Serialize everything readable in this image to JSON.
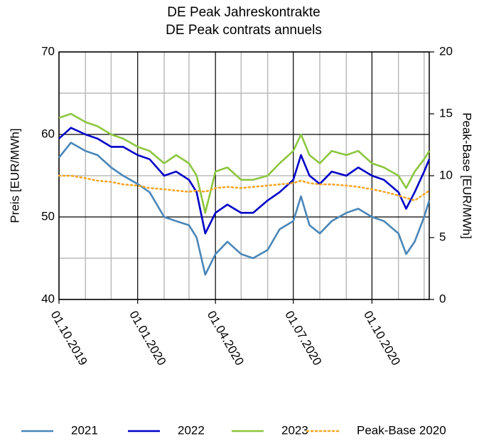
{
  "chart_data": {
    "type": "line",
    "title": "DE Peak Jahreskontrakte",
    "subtitle": "DE Peak contrats annuels",
    "y_label": "Preis [EUR/MWh]",
    "y2_label": "Peak-Base [EUR/MWh]",
    "x": [
      "2019-10-01",
      "2019-10-15",
      "2019-11-01",
      "2019-11-15",
      "2019-12-01",
      "2019-12-15",
      "2020-01-01",
      "2020-01-15",
      "2020-02-01",
      "2020-02-15",
      "2020-03-01",
      "2020-03-10",
      "2020-03-20",
      "2020-04-01",
      "2020-04-15",
      "2020-05-01",
      "2020-05-15",
      "2020-06-01",
      "2020-06-15",
      "2020-07-01",
      "2020-07-10",
      "2020-07-20",
      "2020-08-01",
      "2020-08-15",
      "2020-09-01",
      "2020-09-15",
      "2020-10-01",
      "2020-10-15",
      "2020-11-01",
      "2020-11-10",
      "2020-11-20",
      "2020-12-01",
      "2020-12-07"
    ],
    "series": [
      {
        "name": "2021",
        "color": "#4a86b8",
        "values": [
          57.2,
          59.0,
          58.0,
          57.5,
          56.0,
          55.0,
          54.0,
          53.0,
          50.0,
          49.5,
          49.0,
          47.5,
          43.0,
          45.5,
          47.0,
          45.5,
          45.0,
          46.0,
          48.5,
          49.5,
          52.5,
          49.0,
          48.0,
          49.5,
          50.5,
          51.0,
          50.0,
          49.5,
          48.0,
          45.5,
          47.0,
          50.0,
          52.0
        ]
      },
      {
        "name": "2022",
        "color": "#0000c8",
        "values": [
          59.5,
          60.8,
          60.0,
          59.5,
          58.5,
          58.5,
          57.5,
          57.0,
          55.0,
          55.5,
          54.5,
          53.0,
          48.0,
          50.5,
          51.5,
          50.5,
          50.5,
          52.0,
          53.0,
          54.5,
          57.5,
          55.0,
          54.0,
          55.5,
          55.0,
          56.0,
          55.0,
          54.5,
          53.0,
          51.0,
          53.0,
          55.5,
          57.0
        ]
      },
      {
        "name": "2023",
        "color": "#8cc63f",
        "values": [
          62.0,
          62.5,
          61.5,
          61.0,
          60.0,
          59.5,
          58.5,
          58.0,
          56.5,
          57.5,
          56.5,
          55.0,
          50.5,
          55.5,
          56.0,
          54.5,
          54.5,
          55.0,
          56.5,
          58.0,
          60.0,
          57.5,
          56.5,
          58.0,
          57.5,
          58.0,
          56.5,
          56.0,
          55.0,
          53.5,
          55.5,
          57.0,
          58.0
        ]
      },
      {
        "name": "Peak-Base 2020",
        "color": "#f5a623",
        "axis": "y2",
        "dash": "dotted",
        "values": [
          10.0,
          10.0,
          9.8,
          9.6,
          9.5,
          9.3,
          9.2,
          9.0,
          8.9,
          8.8,
          8.7,
          8.8,
          8.7,
          9.0,
          9.1,
          9.0,
          9.1,
          9.2,
          9.3,
          9.4,
          9.6,
          9.4,
          9.3,
          9.3,
          9.2,
          9.1,
          8.9,
          8.7,
          8.4,
          8.2,
          8.0,
          8.5,
          8.8
        ]
      }
    ],
    "xlim": [
      "2019-10-01",
      "2020-12-07"
    ],
    "xticks": [
      {
        "value": "2019-10-01",
        "label": "01.10.2019"
      },
      {
        "value": "2020-01-01",
        "label": "01.01.2020"
      },
      {
        "value": "2020-04-01",
        "label": "01.04.2020"
      },
      {
        "value": "2020-07-01",
        "label": "01.07.2020"
      },
      {
        "value": "2020-10-01",
        "label": "01.10.2020"
      }
    ],
    "xticks_minor": [
      "2019-11-01",
      "2019-12-01",
      "2020-02-01",
      "2020-03-01",
      "2020-05-01",
      "2020-06-01",
      "2020-08-01",
      "2020-09-01",
      "2020-11-01",
      "2020-12-01"
    ],
    "ylim": [
      40,
      70
    ],
    "yticks": [
      40,
      50,
      60,
      70
    ],
    "yticks_minor": [
      45,
      55,
      65
    ],
    "y2lim": [
      0,
      20
    ],
    "y2ticks": [
      0,
      5,
      10,
      15,
      20
    ],
    "grid": true,
    "legend": "bottom"
  }
}
